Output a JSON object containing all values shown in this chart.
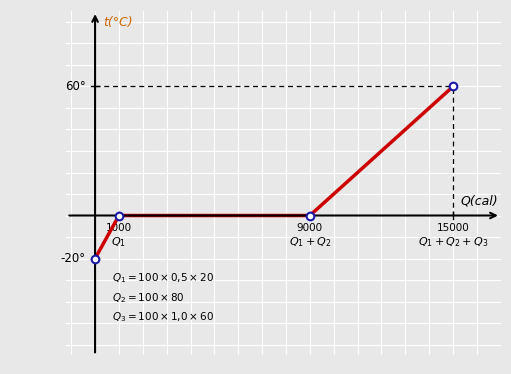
{
  "points_x": [
    0,
    1000,
    9000,
    15000
  ],
  "points_y": [
    -20,
    0,
    0,
    60
  ],
  "x_ticks": [
    1000,
    9000,
    15000
  ],
  "xlim": [
    -1200,
    17000
  ],
  "ylim": [
    -65,
    95
  ],
  "xlabel": "Q(cal)",
  "ylabel": "t(°C)",
  "line_color": "#cc0000",
  "point_color": "#1a1aaa",
  "dashed_color": "#000000",
  "bg_color": "#e8e8e8",
  "grid_color": "#ffffff",
  "formula1": "$Q_1 = 100 \\times 0{,}5 \\times 20$",
  "formula2": "$Q_2 = 100 \\times 80$",
  "formula3": "$Q_3 = 100 \\times 1{,}0 \\times 60$",
  "label_Q1": "$Q_1$",
  "label_Q1Q2": "$Q_1+Q_2$",
  "label_Q1Q2Q3": "$Q_1+Q_2+Q_3$",
  "tick_60_label": "60°",
  "tick_m20_label": "-20°",
  "x_tick_labels": [
    "1000",
    "9000",
    "15000"
  ],
  "label_color": "#000000",
  "axis_color": "#000000"
}
